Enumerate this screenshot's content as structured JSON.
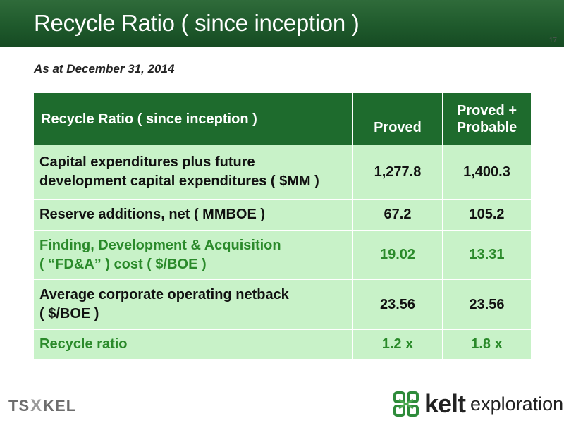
{
  "header": {
    "title": "Recycle Ratio ( since inception )",
    "page_number": "17"
  },
  "subtitle": "As at December 31, 2014",
  "table": {
    "header": {
      "label": "Recycle Ratio ( since inception )",
      "proved": "Proved",
      "proved_probable_line1": "Proved +",
      "proved_probable_line2": "Probable"
    },
    "rows": [
      {
        "label_line1": "Capital expenditures plus future",
        "label_line2": "development capital expenditures ( $MM )",
        "proved": "1,277.8",
        "proved_probable": "1,400.3"
      },
      {
        "label": "Reserve additions, net ( MMBOE )",
        "proved": "67.2",
        "proved_probable": "105.2"
      },
      {
        "label_line1": "Finding, Development & Acquisition",
        "label_line2": "( “FD&A” ) cost ( $/BOE )",
        "proved": "19.02",
        "proved_probable": "13.31"
      },
      {
        "label_line1": "Average corporate operating netback",
        "label_line2": "( $/BOE )",
        "proved": "23.56",
        "proved_probable": "23.56"
      },
      {
        "label": "Recycle ratio",
        "proved": "1.2 x",
        "proved_probable": "1.8 x"
      }
    ]
  },
  "footer": {
    "tsx_left": "TS",
    "tsx_mark": "X",
    "tsx_right": "KEL",
    "brand": "kelt",
    "brand_sub": "exploration"
  },
  "colors": {
    "header_green": "#1f5a2c",
    "table_header_green": "#1e6b2d",
    "cell_green": "#c8f2c8",
    "highlight_text": "#2a8a2a"
  }
}
